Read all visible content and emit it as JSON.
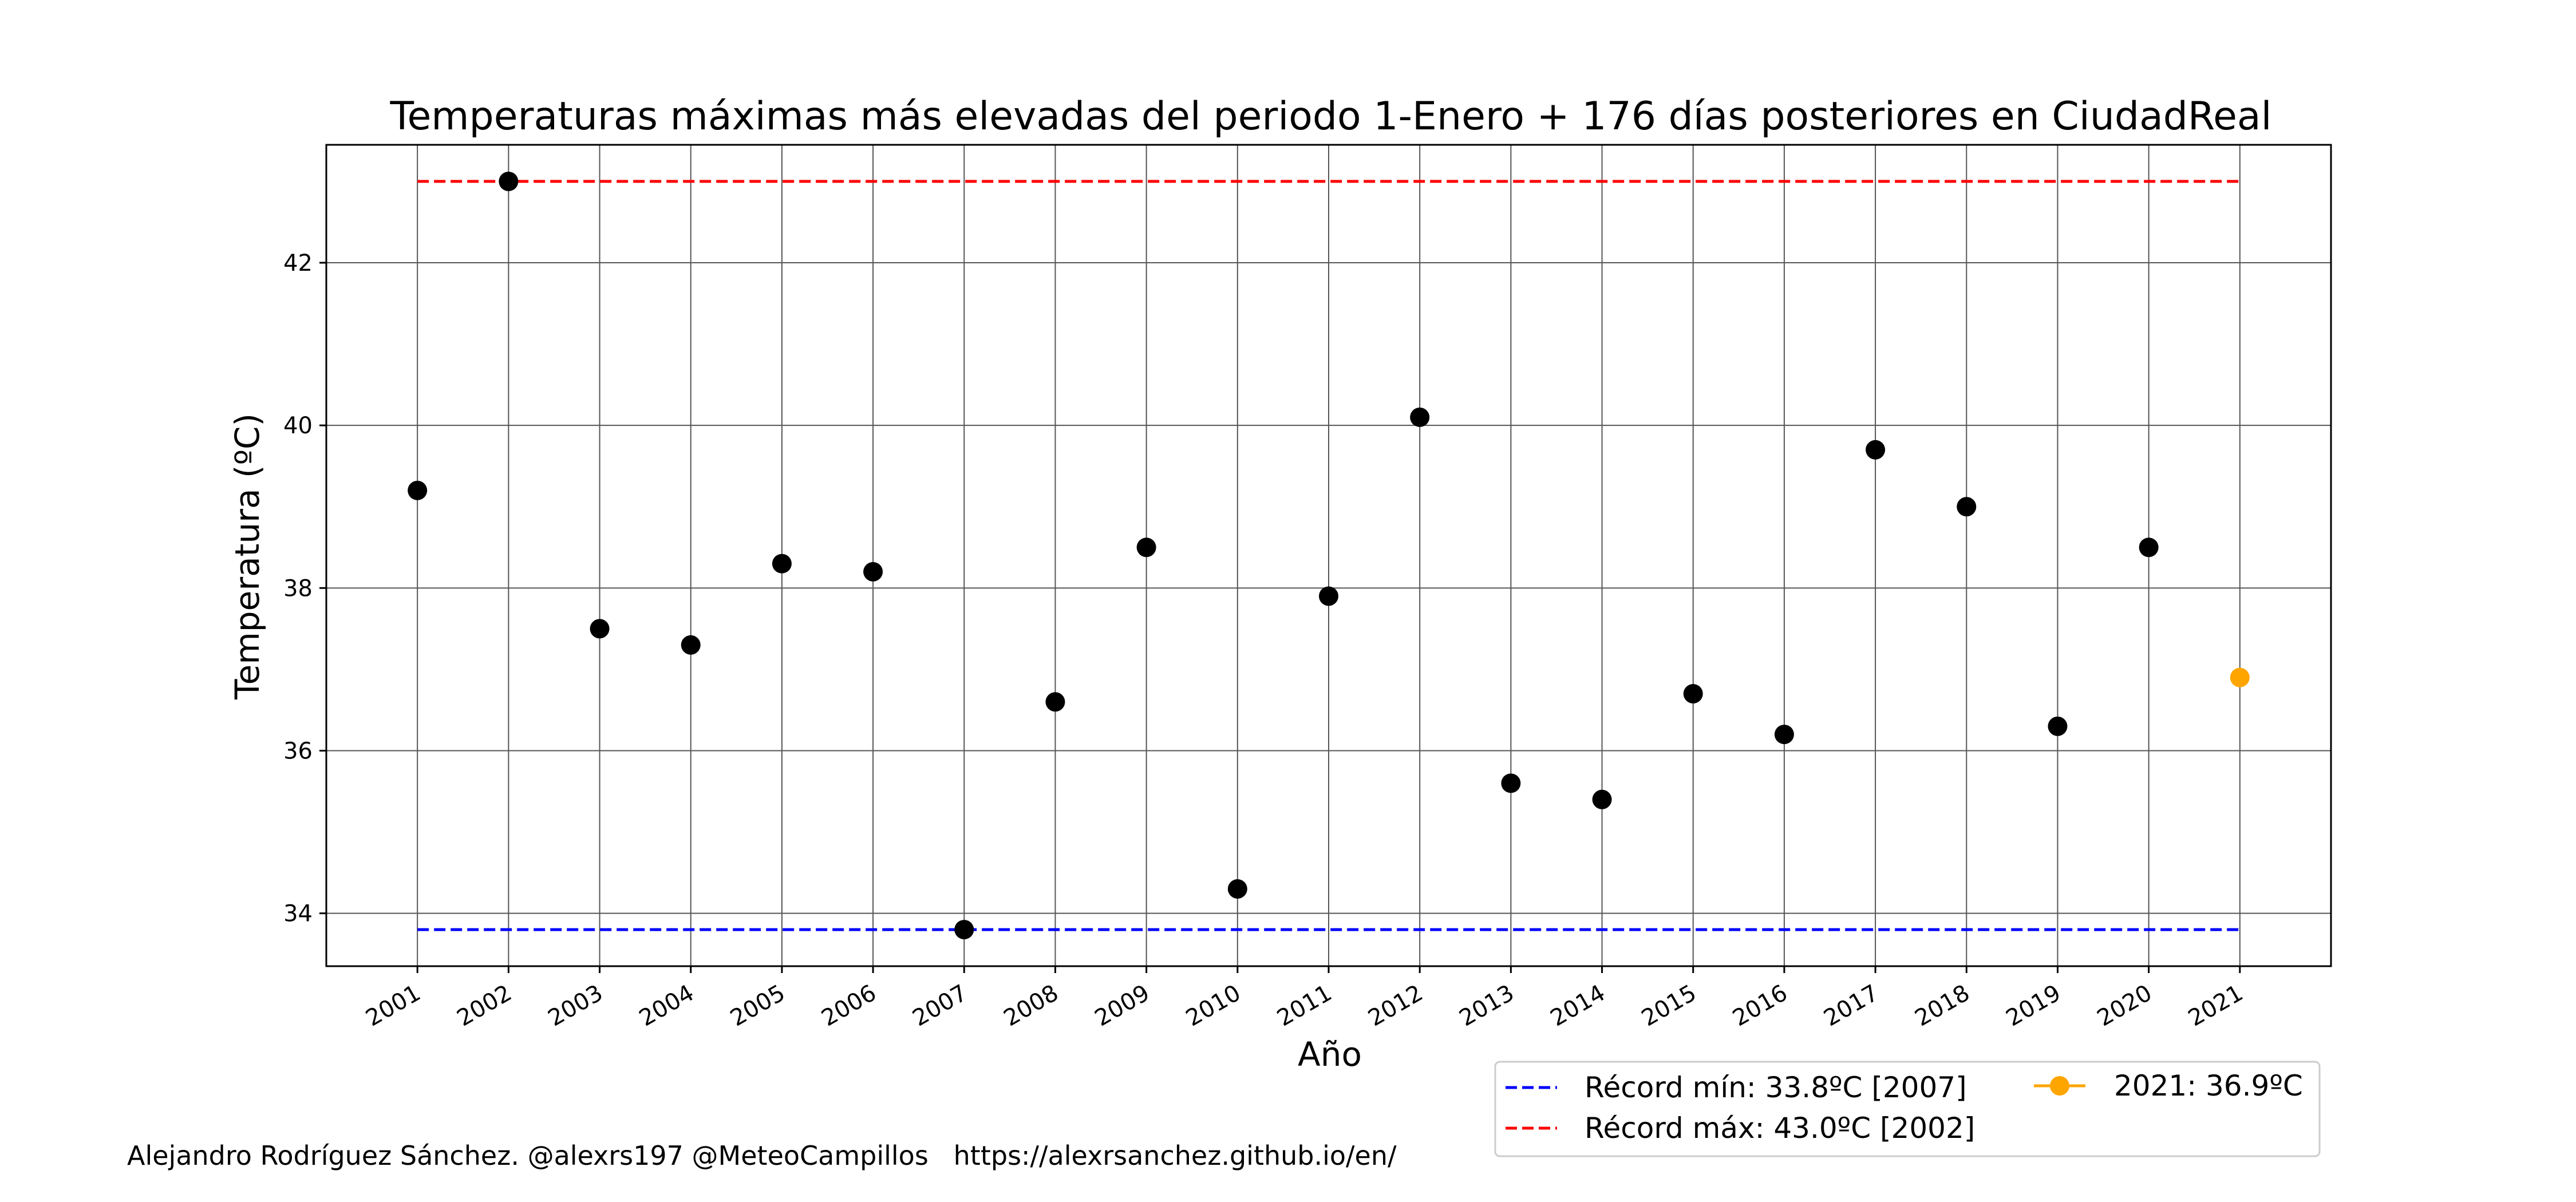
{
  "chart_data": {
    "type": "scatter",
    "title": "Temperaturas máximas más elevadas del periodo 1-Enero + 176 días posteriores en CiudadReal",
    "xlabel": "Año",
    "ylabel": "Temperatura (ºC)",
    "x": [
      2001,
      2002,
      2003,
      2004,
      2005,
      2006,
      2007,
      2008,
      2009,
      2010,
      2011,
      2012,
      2013,
      2014,
      2015,
      2016,
      2017,
      2018,
      2019,
      2020,
      2021
    ],
    "x_tick_labels": [
      "2001",
      "2002",
      "2003",
      "2004",
      "2005",
      "2006",
      "2007",
      "2008",
      "2009",
      "2010",
      "2011",
      "2012",
      "2013",
      "2014",
      "2015",
      "2016",
      "2017",
      "2018",
      "2019",
      "2020",
      "2021"
    ],
    "xlim": [
      2000.0,
      2022.0
    ],
    "ylim": [
      33.35,
      43.45
    ],
    "y_ticks": [
      34,
      36,
      38,
      40,
      42
    ],
    "grid": true,
    "series": [
      {
        "color": "#000000",
        "x": [
          2001,
          2002,
          2003,
          2004,
          2005,
          2006,
          2007,
          2008,
          2009,
          2010,
          2011,
          2012,
          2013,
          2014,
          2015,
          2016,
          2017,
          2018,
          2019,
          2020
        ],
        "y": [
          39.2,
          43.0,
          37.5,
          37.3,
          38.3,
          38.2,
          33.8,
          36.6,
          38.5,
          34.3,
          37.9,
          40.1,
          35.6,
          35.4,
          36.7,
          36.2,
          39.7,
          39.0,
          36.3,
          38.5
        ]
      },
      {
        "name": "2021: 36.9ºC",
        "color": "#ffa500",
        "x": [
          2021
        ],
        "y": [
          36.9
        ]
      }
    ],
    "reference_lines": [
      {
        "name": "Récord mín: 33.8ºC [2007]",
        "y": 33.8,
        "x_range": [
          2001,
          2021
        ],
        "color": "#0000ff",
        "style": "dashed"
      },
      {
        "name": "Récord máx: 43.0ºC [2002]",
        "y": 43.0,
        "x_range": [
          2001,
          2021
        ],
        "color": "#ff0000",
        "style": "dashed"
      }
    ],
    "legend": {
      "placement": "below-right",
      "entries": [
        {
          "label": "Récord mín: 33.8ºC [2007]",
          "kind": "dashed-line",
          "color": "#0000ff"
        },
        {
          "label": "Récord máx: 43.0ºC [2002]",
          "kind": "dashed-line",
          "color": "#ff0000"
        },
        {
          "label": "2021: 36.9ºC",
          "kind": "line-marker",
          "color": "#ffa500"
        }
      ]
    }
  },
  "footer": {
    "credit": "Alejandro Rodríguez Sánchez. @alexrs197 @MeteoCampillos   https://alexrsanchez.github.io/en/"
  }
}
